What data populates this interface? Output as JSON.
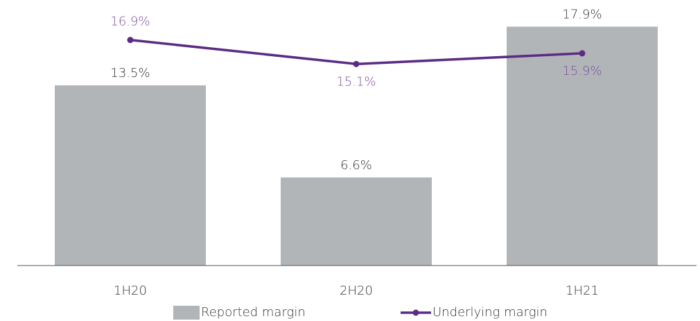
{
  "chart_data": {
    "type": "bar",
    "categories": [
      "1H20",
      "2H20",
      "1H21"
    ],
    "series": [
      {
        "name": "Reported margin",
        "type": "bar",
        "color": "#b1b5b8",
        "label_color": "#333333",
        "values": [
          13.5,
          6.6,
          17.9
        ],
        "value_labels": [
          "13.5%",
          "6.6%",
          "17.9%"
        ]
      },
      {
        "name": "Underlying margin",
        "type": "line",
        "color": "#5b2c83",
        "label_color": "#7b4f9e",
        "values": [
          16.9,
          15.1,
          15.9
        ],
        "value_labels": [
          "16.9%",
          "15.1%",
          "15.9%"
        ]
      }
    ],
    "ylim": [
      0,
      20
    ]
  }
}
